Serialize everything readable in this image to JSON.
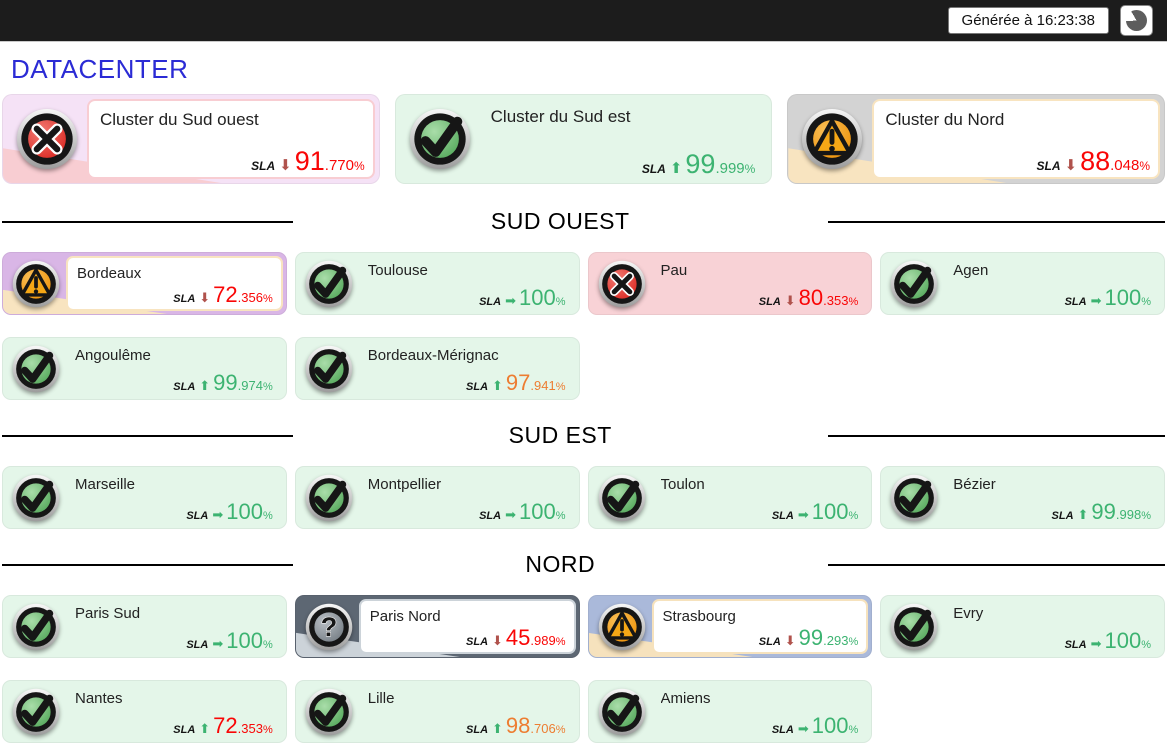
{
  "topbar": {
    "generated_label": "Générée à 16:23:38",
    "clock_icon": "pie-clock-icon",
    "bg": "#1c1c1c"
  },
  "page": {
    "title": "DATACENTER",
    "title_color": "#2b2bd5"
  },
  "labels": {
    "sla": "SLA"
  },
  "colors": {
    "value_green": "#3cb371",
    "value_orange": "#ed7d31",
    "value_red": "#f90606",
    "arrow_up": "#3cb371",
    "arrow_right": "#3cb371",
    "arrow_down": "#b0524c",
    "card_green": "#e4f6e9",
    "card_red": "#f8d2d6"
  },
  "clusters": {
    "cards": [
      {
        "title": "Cluster du Sud ouest",
        "icon": "error-icon",
        "layout": "boxed",
        "bg": "#f5e2f6",
        "accent": "#f8cdd2",
        "sla": {
          "trend": "down",
          "value_int": "91",
          "value_dec": ".770",
          "unit": "%",
          "value_color": "red"
        }
      },
      {
        "title": "Cluster du Sud est",
        "icon": "ok-icon",
        "layout": "flat",
        "bg": "#e4f6e9",
        "sla": {
          "trend": "up",
          "value_int": "99",
          "value_dec": ".999",
          "unit": "%",
          "value_color": "green"
        }
      },
      {
        "title": "Cluster du Nord",
        "icon": "warning-icon",
        "layout": "boxed",
        "bg": "#d3d3d3",
        "accent": "#f8e4c0",
        "sla": {
          "trend": "down",
          "value_int": "88",
          "value_dec": ".048",
          "unit": "%",
          "value_color": "red"
        }
      }
    ]
  },
  "sections": [
    {
      "title": "SUD OUEST",
      "cards": [
        {
          "title": "Bordeaux",
          "icon": "warning-icon",
          "layout": "boxed",
          "bg": "#d9b6e6",
          "accent": "#f8e4c0",
          "sla": {
            "trend": "down",
            "value_int": "72",
            "value_dec": ".356",
            "unit": "%",
            "value_color": "red"
          }
        },
        {
          "title": "Toulouse",
          "icon": "ok-icon",
          "layout": "flat",
          "bg": "#e4f6e9",
          "sla": {
            "trend": "right",
            "value_int": "100",
            "value_dec": "",
            "unit": "%",
            "value_color": "green"
          }
        },
        {
          "title": "Pau",
          "icon": "error-icon",
          "layout": "flat",
          "bg": "#f8d2d6",
          "sla": {
            "trend": "down",
            "value_int": "80",
            "value_dec": ".353",
            "unit": "%",
            "value_color": "red"
          }
        },
        {
          "title": "Agen",
          "icon": "ok-icon",
          "layout": "flat",
          "bg": "#e4f6e9",
          "sla": {
            "trend": "right",
            "value_int": "100",
            "value_dec": "",
            "unit": "%",
            "value_color": "green"
          }
        },
        {
          "title": "Angoulême",
          "icon": "ok-icon",
          "layout": "flat",
          "bg": "#e4f6e9",
          "sla": {
            "trend": "up",
            "value_int": "99",
            "value_dec": ".974",
            "unit": "%",
            "value_color": "green"
          }
        },
        {
          "title": "Bordeaux-Mérignac",
          "icon": "ok-icon",
          "layout": "flat",
          "bg": "#e4f6e9",
          "sla": {
            "trend": "up",
            "value_int": "97",
            "value_dec": ".941",
            "unit": "%",
            "value_color": "orange"
          }
        }
      ]
    },
    {
      "title": "SUD EST",
      "cards": [
        {
          "title": "Marseille",
          "icon": "ok-icon",
          "layout": "flat",
          "bg": "#e4f6e9",
          "sla": {
            "trend": "right",
            "value_int": "100",
            "value_dec": "",
            "unit": "%",
            "value_color": "green"
          }
        },
        {
          "title": "Montpellier",
          "icon": "ok-icon",
          "layout": "flat",
          "bg": "#e4f6e9",
          "sla": {
            "trend": "right",
            "value_int": "100",
            "value_dec": "",
            "unit": "%",
            "value_color": "green"
          }
        },
        {
          "title": "Toulon",
          "icon": "ok-icon",
          "layout": "flat",
          "bg": "#e4f6e9",
          "sla": {
            "trend": "right",
            "value_int": "100",
            "value_dec": "",
            "unit": "%",
            "value_color": "green"
          }
        },
        {
          "title": "Bézier",
          "icon": "ok-icon",
          "layout": "flat",
          "bg": "#e4f6e9",
          "sla": {
            "trend": "up",
            "value_int": "99",
            "value_dec": ".998",
            "unit": "%",
            "value_color": "green"
          }
        }
      ]
    },
    {
      "title": "NORD",
      "cards": [
        {
          "title": "Paris Sud",
          "icon": "ok-icon",
          "layout": "flat",
          "bg": "#e4f6e9",
          "sla": {
            "trend": "right",
            "value_int": "100",
            "value_dec": "",
            "unit": "%",
            "value_color": "green"
          }
        },
        {
          "title": "Paris Nord",
          "icon": "unknown-icon",
          "layout": "boxed",
          "bg": "#5d6773",
          "accent": "#ccd3d9",
          "sla": {
            "trend": "down",
            "value_int": "45",
            "value_dec": ".989",
            "unit": "%",
            "value_color": "red"
          }
        },
        {
          "title": "Strasbourg",
          "icon": "warning-icon",
          "layout": "boxed",
          "bg": "#aab9da",
          "accent": "#f6e2bd",
          "sla": {
            "trend": "down",
            "value_int": "99",
            "value_dec": ".293",
            "unit": "%",
            "value_color": "green"
          }
        },
        {
          "title": "Evry",
          "icon": "ok-icon",
          "layout": "flat",
          "bg": "#e4f6e9",
          "sla": {
            "trend": "right",
            "value_int": "100",
            "value_dec": "",
            "unit": "%",
            "value_color": "green"
          }
        },
        {
          "title": "Nantes",
          "icon": "ok-icon",
          "layout": "flat",
          "bg": "#e4f6e9",
          "sla": {
            "trend": "up",
            "value_int": "72",
            "value_dec": ".353",
            "unit": "%",
            "value_color": "red"
          }
        },
        {
          "title": "Lille",
          "icon": "ok-icon",
          "layout": "flat",
          "bg": "#e4f6e9",
          "sla": {
            "trend": "up",
            "value_int": "98",
            "value_dec": ".706",
            "unit": "%",
            "value_color": "orange"
          }
        },
        {
          "title": "Amiens",
          "icon": "ok-icon",
          "layout": "flat",
          "bg": "#e4f6e9",
          "sla": {
            "trend": "right",
            "value_int": "100",
            "value_dec": "",
            "unit": "%",
            "value_color": "green"
          }
        }
      ]
    }
  ]
}
